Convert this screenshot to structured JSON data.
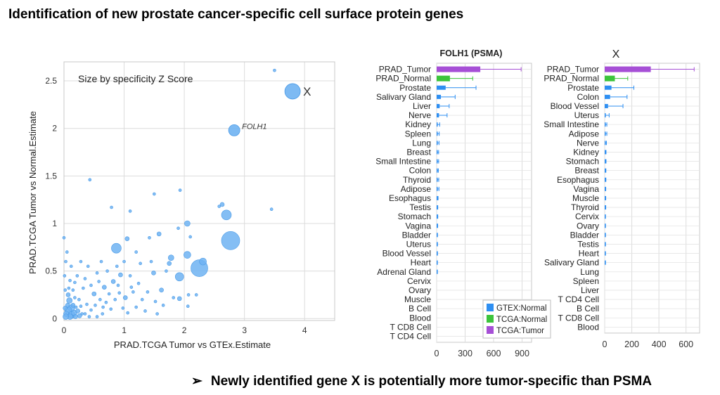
{
  "slide": {
    "title": "Identification of new prostate cancer-specific cell surface protein genes",
    "arrow": "➢",
    "conclusion": "Newly identified gene X is potentially more tumor-specific than PSMA"
  },
  "colors": {
    "gtex_normal": "#2e8ff2",
    "tcga_normal": "#3cc43c",
    "tcga_tumor": "#a64fd6",
    "scatter": "#6fb3f2",
    "scatter_stroke": "#4a9ae6",
    "grid": "#dcdcdc",
    "axis_text": "#333333"
  },
  "chart_data": [
    {
      "type": "scatter",
      "xlabel": "PRAD.TCGA Tumor vs GTEx.Estimate",
      "ylabel": "PRAD.TCGA Tumor vs Normal.Estimate",
      "xlim": [
        0,
        4.5
      ],
      "ylim": [
        -0.02,
        2.7
      ],
      "xticks": [
        0,
        1,
        2,
        3,
        4
      ],
      "yticks": [
        0,
        0.5,
        1,
        1.5,
        2,
        2.5
      ],
      "xtick_labels": [
        "0",
        "1",
        "2",
        "3",
        "4"
      ],
      "ytick_labels": [
        "0",
        "0.5",
        "1",
        "1.5",
        "2",
        "2.5"
      ],
      "annotation": "Size by specificity Z Score",
      "labeled_points": [
        {
          "label": "X",
          "x": 3.8,
          "y": 2.39,
          "size": 11
        },
        {
          "label": "FOLH1",
          "x": 2.83,
          "y": 1.98,
          "size": 8
        }
      ],
      "points": [
        [
          3.5,
          2.61,
          2
        ],
        [
          2.77,
          0.82,
          13
        ],
        [
          2.25,
          0.53,
          12
        ],
        [
          2.7,
          1.09,
          7
        ],
        [
          2.63,
          1.2,
          3
        ],
        [
          0.87,
          0.74,
          7
        ],
        [
          2.31,
          0.6,
          5
        ],
        [
          1.92,
          0.44,
          6
        ],
        [
          2.05,
          1.0,
          4
        ],
        [
          2.05,
          0.67,
          5
        ],
        [
          1.78,
          0.64,
          4
        ],
        [
          1.75,
          0.58,
          3
        ],
        [
          3.45,
          1.15,
          2
        ],
        [
          2.58,
          1.18,
          2
        ],
        [
          0.43,
          1.46,
          2
        ],
        [
          1.5,
          1.31,
          2
        ],
        [
          1.93,
          1.35,
          2
        ],
        [
          0.79,
          1.17,
          2
        ],
        [
          1.1,
          1.13,
          2
        ],
        [
          1.58,
          0.89,
          3
        ],
        [
          1.05,
          0.84,
          3
        ],
        [
          1.42,
          0.85,
          2
        ],
        [
          1.9,
          0.95,
          2
        ],
        [
          2.1,
          0.86,
          2
        ],
        [
          1.2,
          0.7,
          2
        ],
        [
          1.49,
          0.48,
          3
        ],
        [
          1.27,
          0.58,
          2
        ],
        [
          1.0,
          0.6,
          2
        ],
        [
          0.94,
          0.46,
          3
        ],
        [
          0.82,
          0.39,
          3
        ],
        [
          0.58,
          0.39,
          2
        ],
        [
          0.67,
          0.33,
          3
        ],
        [
          0.5,
          0.26,
          3
        ],
        [
          0.92,
          0.27,
          2
        ],
        [
          1.02,
          0.22,
          3
        ],
        [
          1.12,
          0.33,
          2
        ],
        [
          1.24,
          0.37,
          2
        ],
        [
          1.39,
          0.28,
          2
        ],
        [
          1.62,
          0.3,
          3
        ],
        [
          1.92,
          0.21,
          3
        ],
        [
          1.52,
          0.18,
          2
        ],
        [
          1.65,
          0.14,
          2
        ],
        [
          1.82,
          0.22,
          2
        ],
        [
          2.07,
          0.25,
          2
        ],
        [
          2.06,
          0.13,
          2
        ],
        [
          2.2,
          0.25,
          2
        ],
        [
          1.55,
          0.05,
          2
        ],
        [
          1.35,
          0.08,
          2
        ],
        [
          0.98,
          0.11,
          2
        ],
        [
          1.06,
          0.06,
          2
        ],
        [
          1.2,
          0.12,
          2
        ],
        [
          0.78,
          0.1,
          2
        ],
        [
          0.64,
          0.05,
          2
        ],
        [
          0.52,
          0.14,
          2
        ],
        [
          0.45,
          0.09,
          2
        ],
        [
          0.38,
          0.15,
          2
        ],
        [
          0.3,
          0.05,
          2
        ],
        [
          0.25,
          0.2,
          2
        ],
        [
          0.32,
          0.32,
          2
        ],
        [
          0.4,
          0.55,
          2
        ],
        [
          0.22,
          0.45,
          2
        ],
        [
          0.15,
          0.3,
          2
        ],
        [
          0.2,
          0.12,
          2
        ],
        [
          0.1,
          0.4,
          2
        ],
        [
          0.09,
          0.19,
          4
        ],
        [
          0.12,
          0.11,
          5
        ],
        [
          0.07,
          0.09,
          5
        ],
        [
          0.04,
          0.05,
          4
        ],
        [
          0.13,
          0.04,
          5
        ],
        [
          0.17,
          0.06,
          4
        ],
        [
          0.06,
          0.14,
          3
        ],
        [
          0.1,
          0.02,
          4
        ],
        [
          0.02,
          0.11,
          3
        ],
        [
          0.03,
          0.02,
          4
        ],
        [
          0.15,
          0.14,
          3
        ],
        [
          0.19,
          0.02,
          3
        ],
        [
          0.23,
          0.08,
          3
        ],
        [
          0.26,
          0.03,
          3
        ],
        [
          0.07,
          0.25,
          3
        ],
        [
          0.02,
          0.3,
          2
        ],
        [
          0.01,
          0.45,
          2
        ],
        [
          0.0,
          0.85,
          2
        ],
        [
          0.03,
          0.6,
          2
        ],
        [
          0.08,
          0.32,
          2
        ],
        [
          0.18,
          0.22,
          2
        ],
        [
          0.28,
          0.13,
          2
        ],
        [
          0.35,
          0.05,
          2
        ],
        [
          0.42,
          0.02,
          2
        ],
        [
          0.55,
          0.02,
          2
        ],
        [
          0.6,
          0.2,
          2
        ],
        [
          0.7,
          0.17,
          2
        ],
        [
          0.75,
          0.26,
          2
        ],
        [
          0.85,
          0.2,
          2
        ],
        [
          0.88,
          0.55,
          2
        ],
        [
          0.72,
          0.5,
          2
        ],
        [
          0.62,
          0.6,
          2
        ],
        [
          1.1,
          0.45,
          2
        ],
        [
          1.3,
          0.2,
          2
        ],
        [
          1.45,
          0.6,
          2
        ],
        [
          1.7,
          0.5,
          2
        ],
        [
          0.35,
          0.42,
          2
        ],
        [
          0.28,
          0.6,
          2
        ],
        [
          0.45,
          0.35,
          2
        ],
        [
          0.55,
          0.48,
          2
        ],
        [
          0.12,
          0.55,
          2
        ],
        [
          0.05,
          0.7,
          2
        ],
        [
          0.18,
          0.38,
          2
        ],
        [
          0.65,
          0.12,
          2
        ],
        [
          0.9,
          0.35,
          2
        ],
        [
          1.15,
          0.28,
          2
        ]
      ]
    },
    {
      "type": "bar",
      "orientation": "horizontal",
      "title": "FOLH1 (PSMA)",
      "xlim": [
        0,
        1000
      ],
      "xticks": [
        0,
        300,
        600,
        900
      ],
      "xtick_labels": [
        "0",
        "300",
        "600",
        "900"
      ],
      "legend": {
        "position": "bottom-right",
        "entries": [
          "GTEX:Normal",
          "TCGA:Normal",
          "TCGA:Tumor"
        ]
      },
      "rows": [
        {
          "label": "PRAD_Tumor",
          "group": "TCGA:Tumor",
          "value": 460,
          "err": 430
        },
        {
          "label": "PRAD_Normal",
          "group": "TCGA:Normal",
          "value": 140,
          "err": 240
        },
        {
          "label": "Prostate",
          "group": "GTEX:Normal",
          "value": 95,
          "err": 320
        },
        {
          "label": "Salivary Gland",
          "group": "GTEX:Normal",
          "value": 45,
          "err": 150
        },
        {
          "label": "Liver",
          "group": "GTEX:Normal",
          "value": 32,
          "err": 100
        },
        {
          "label": "Nerve",
          "group": "GTEX:Normal",
          "value": 25,
          "err": 85
        },
        {
          "label": "Kidney",
          "group": "GTEX:Normal",
          "value": 10,
          "err": 22
        },
        {
          "label": "Spleen",
          "group": "GTEX:Normal",
          "value": 9,
          "err": 18
        },
        {
          "label": "Lung",
          "group": "GTEX:Normal",
          "value": 9,
          "err": 16
        },
        {
          "label": "Breast",
          "group": "GTEX:Normal",
          "value": 7,
          "err": 14
        },
        {
          "label": "Small Intestine",
          "group": "GTEX:Normal",
          "value": 7,
          "err": 14
        },
        {
          "label": "Colon",
          "group": "GTEX:Normal",
          "value": 6,
          "err": 12
        },
        {
          "label": "Thyroid",
          "group": "GTEX:Normal",
          "value": 8,
          "err": 14
        },
        {
          "label": "Adipose",
          "group": "GTEX:Normal",
          "value": 8,
          "err": 16
        },
        {
          "label": "Esophagus",
          "group": "GTEX:Normal",
          "value": 5,
          "err": 10
        },
        {
          "label": "Testis",
          "group": "GTEX:Normal",
          "value": 4,
          "err": 8
        },
        {
          "label": "Stomach",
          "group": "GTEX:Normal",
          "value": 4,
          "err": 8
        },
        {
          "label": "Vagina",
          "group": "GTEX:Normal",
          "value": 4,
          "err": 7
        },
        {
          "label": "Bladder",
          "group": "GTEX:Normal",
          "value": 3,
          "err": 6
        },
        {
          "label": "Uterus",
          "group": "GTEX:Normal",
          "value": 3,
          "err": 6
        },
        {
          "label": "Blood Vessel",
          "group": "GTEX:Normal",
          "value": 3,
          "err": 6
        },
        {
          "label": "Heart",
          "group": "GTEX:Normal",
          "value": 3,
          "err": 5
        },
        {
          "label": "Adrenal Gland",
          "group": "GTEX:Normal",
          "value": 3,
          "err": 5
        },
        {
          "label": "Cervix",
          "group": "GTEX:Normal",
          "value": 0,
          "err": 0
        },
        {
          "label": "Ovary",
          "group": "GTEX:Normal",
          "value": 0,
          "err": 0
        },
        {
          "label": "Muscle",
          "group": "GTEX:Normal",
          "value": 0,
          "err": 0
        },
        {
          "label": "B Cell",
          "group": "GTEX:Normal",
          "value": 0,
          "err": 0
        },
        {
          "label": "Blood",
          "group": "GTEX:Normal",
          "value": 0,
          "err": 0
        },
        {
          "label": "T CD8 Cell",
          "group": "GTEX:Normal",
          "value": 0,
          "err": 0
        },
        {
          "label": "T CD4 Cell",
          "group": "GTEX:Normal",
          "value": 0,
          "err": 0
        }
      ]
    },
    {
      "type": "bar",
      "orientation": "horizontal",
      "title": "X",
      "xlim": [
        0,
        700
      ],
      "xticks": [
        0,
        200,
        400,
        600
      ],
      "xtick_labels": [
        "0",
        "200",
        "400",
        "600"
      ],
      "rows": [
        {
          "label": "PRAD_Tumor",
          "group": "TCGA:Tumor",
          "value": 340,
          "err": 320
        },
        {
          "label": "PRAD_Normal",
          "group": "TCGA:Normal",
          "value": 75,
          "err": 95
        },
        {
          "label": "Prostate",
          "group": "GTEX:Normal",
          "value": 50,
          "err": 165
        },
        {
          "label": "Colon",
          "group": "GTEX:Normal",
          "value": 40,
          "err": 125
        },
        {
          "label": "Blood Vessel",
          "group": "GTEX:Normal",
          "value": 25,
          "err": 110
        },
        {
          "label": "Uterus",
          "group": "GTEX:Normal",
          "value": 8,
          "err": 25
        },
        {
          "label": "Small Intestine",
          "group": "GTEX:Normal",
          "value": 6,
          "err": 10
        },
        {
          "label": "Adipose",
          "group": "GTEX:Normal",
          "value": 6,
          "err": 10
        },
        {
          "label": "Nerve",
          "group": "GTEX:Normal",
          "value": 5,
          "err": 8
        },
        {
          "label": "Kidney",
          "group": "GTEX:Normal",
          "value": 4,
          "err": 6
        },
        {
          "label": "Stomach",
          "group": "GTEX:Normal",
          "value": 4,
          "err": 6
        },
        {
          "label": "Breast",
          "group": "GTEX:Normal",
          "value": 3,
          "err": 6
        },
        {
          "label": "Esophagus",
          "group": "GTEX:Normal",
          "value": 3,
          "err": 6
        },
        {
          "label": "Vagina",
          "group": "GTEX:Normal",
          "value": 3,
          "err": 5
        },
        {
          "label": "Muscle",
          "group": "GTEX:Normal",
          "value": 3,
          "err": 5
        },
        {
          "label": "Thyroid",
          "group": "GTEX:Normal",
          "value": 3,
          "err": 5
        },
        {
          "label": "Cervix",
          "group": "GTEX:Normal",
          "value": 2,
          "err": 4
        },
        {
          "label": "Ovary",
          "group": "GTEX:Normal",
          "value": 2,
          "err": 4
        },
        {
          "label": "Bladder",
          "group": "GTEX:Normal",
          "value": 2,
          "err": 4
        },
        {
          "label": "Testis",
          "group": "GTEX:Normal",
          "value": 2,
          "err": 4
        },
        {
          "label": "Heart",
          "group": "GTEX:Normal",
          "value": 2,
          "err": 4
        },
        {
          "label": "Salivary Gland",
          "group": "GTEX:Normal",
          "value": 2,
          "err": 4
        },
        {
          "label": "Lung",
          "group": "GTEX:Normal",
          "value": 0,
          "err": 0
        },
        {
          "label": "Spleen",
          "group": "GTEX:Normal",
          "value": 0,
          "err": 0
        },
        {
          "label": "Liver",
          "group": "GTEX:Normal",
          "value": 0,
          "err": 0
        },
        {
          "label": "T CD4 Cell",
          "group": "GTEX:Normal",
          "value": 0,
          "err": 0
        },
        {
          "label": "B Cell",
          "group": "GTEX:Normal",
          "value": 0,
          "err": 0
        },
        {
          "label": "T CD8 Cell",
          "group": "GTEX:Normal",
          "value": 0,
          "err": 0
        },
        {
          "label": "Blood",
          "group": "GTEX:Normal",
          "value": 0,
          "err": 0
        }
      ]
    }
  ]
}
